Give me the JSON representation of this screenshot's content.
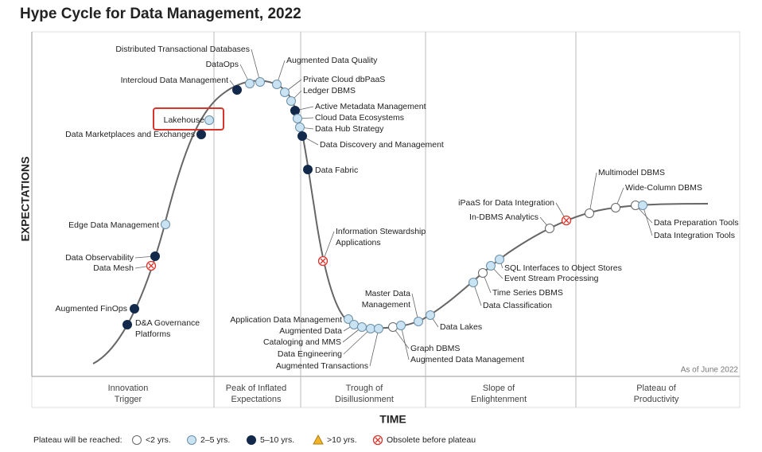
{
  "title": "Hype Cycle for Data Management, 2022",
  "y_axis_label": "EXPECTATIONS",
  "x_axis_label": "TIME",
  "note": "As of June 2022",
  "phases": [
    [
      "Innovation",
      "Trigger"
    ],
    [
      "Peak of Inflated",
      "Expectations"
    ],
    [
      "Trough of",
      "Disillusionment"
    ],
    [
      "Slope of",
      "Enlightenment"
    ],
    [
      "Plateau of",
      "Productivity"
    ]
  ],
  "legend": {
    "title": "Plateau will be reached:",
    "items": [
      "<2 yrs.",
      "2–5 yrs.",
      "5–10 yrs.",
      ">10 yrs.",
      "Obsolete before plateau"
    ]
  },
  "technologies": [
    {
      "name": [
        "Distributed Transactional Databases"
      ],
      "plateau": "2–5 yrs."
    },
    {
      "name": [
        "DataOps"
      ],
      "plateau": "2–5 yrs."
    },
    {
      "name": [
        "Augmented Data Quality"
      ],
      "plateau": "2–5 yrs."
    },
    {
      "name": [
        "Intercloud Data Management"
      ],
      "plateau": "5–10 yrs."
    },
    {
      "name": [
        "Private Cloud dbPaaS"
      ],
      "plateau": "2–5 yrs."
    },
    {
      "name": [
        "Ledger DBMS"
      ],
      "plateau": "2–5 yrs."
    },
    {
      "name": [
        "Active Metadata Management"
      ],
      "plateau": "5–10 yrs."
    },
    {
      "name": [
        "Lakehouse"
      ],
      "plateau": "2–5 yrs."
    },
    {
      "name": [
        "Cloud Data Ecosystems"
      ],
      "plateau": "2–5 yrs."
    },
    {
      "name": [
        "Data Hub Strategy"
      ],
      "plateau": "2–5 yrs."
    },
    {
      "name": [
        "Data Marketplaces and Exchanges"
      ],
      "plateau": "5–10 yrs."
    },
    {
      "name": [
        "Data Discovery and Management"
      ],
      "plateau": "5–10 yrs."
    },
    {
      "name": [
        "Data Fabric"
      ],
      "plateau": "5–10 yrs."
    },
    {
      "name": [
        "Edge Data Management"
      ],
      "plateau": "2–5 yrs."
    },
    {
      "name": [
        "Information Stewardship",
        "Applications"
      ],
      "plateau": "Obsolete before plateau"
    },
    {
      "name": [
        "Data Observability"
      ],
      "plateau": "5–10 yrs."
    },
    {
      "name": [
        "Data Mesh"
      ],
      "plateau": "Obsolete before plateau"
    },
    {
      "name": [
        "Master Data",
        "Management"
      ],
      "plateau": "2–5 yrs."
    },
    {
      "name": [
        "Augmented FinOps"
      ],
      "plateau": "5–10 yrs."
    },
    {
      "name": [
        "Application Data Management"
      ],
      "plateau": "2–5 yrs."
    },
    {
      "name": [
        "D&A Governance",
        "Platforms"
      ],
      "plateau": "5–10 yrs."
    },
    {
      "name": [
        "Augmented Data"
      ],
      "plateau": "2–5 yrs."
    },
    {
      "name": [
        "Cataloging and MMS"
      ],
      "plateau": "2–5 yrs."
    },
    {
      "name": [
        "Data Engineering"
      ],
      "plateau": "2–5 yrs."
    },
    {
      "name": [
        "Augmented Transactions"
      ],
      "plateau": "2–5 yrs."
    },
    {
      "name": [
        "Graph DBMS"
      ],
      "plateau": "<2 yrs."
    },
    {
      "name": [
        "Augmented Data Management"
      ],
      "plateau": "2–5 yrs."
    },
    {
      "name": [
        "Data Lakes"
      ],
      "plateau": "2–5 yrs."
    },
    {
      "name": [
        "Data Classification"
      ],
      "plateau": "2–5 yrs."
    },
    {
      "name": [
        "Time Series DBMS"
      ],
      "plateau": "<2 yrs."
    },
    {
      "name": [
        "Event Stream Processing"
      ],
      "plateau": "2–5 yrs."
    },
    {
      "name": [
        "SQL Interfaces to Object Stores"
      ],
      "plateau": "2–5 yrs."
    },
    {
      "name": [
        "In-DBMS Analytics"
      ],
      "plateau": "<2 yrs."
    },
    {
      "name": [
        "iPaaS for Data Integration"
      ],
      "plateau": "Obsolete before plateau"
    },
    {
      "name": [
        "Multimodel DBMS"
      ],
      "plateau": "<2 yrs."
    },
    {
      "name": [
        "Wide-Column DBMS"
      ],
      "plateau": "<2 yrs."
    },
    {
      "name": [
        "Data Preparation Tools"
      ],
      "plateau": "<2 yrs."
    },
    {
      "name": [
        "Data Integration Tools"
      ],
      "plateau": "2–5 yrs."
    }
  ]
}
